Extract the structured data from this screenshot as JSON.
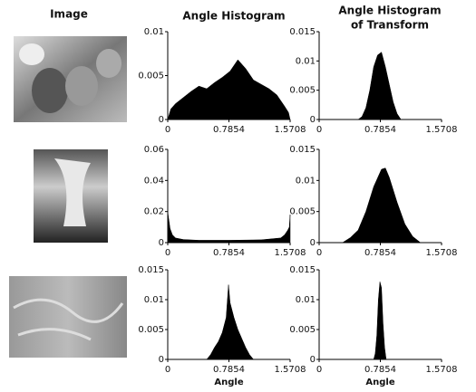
{
  "headers": {
    "image": "Image",
    "angle_histogram": "Angle Histogram",
    "transform": [
      "Angle Histogram",
      "of Transform"
    ]
  },
  "chart_data": [
    {
      "type": "area",
      "color": "#000000",
      "xlim": [
        0,
        1.5708
      ],
      "xticks": [
        0,
        0.7854,
        1.5708
      ],
      "ylim": [
        0,
        0.01
      ],
      "yticks": [
        0,
        0.005,
        0.01
      ],
      "x": [
        0,
        0.04,
        0.1,
        0.2,
        0.3,
        0.4,
        0.5,
        0.6,
        0.7,
        0.8,
        0.9,
        1.0,
        1.1,
        1.2,
        1.3,
        1.4,
        1.5,
        1.55,
        1.5708
      ],
      "values": [
        0,
        0.0012,
        0.0018,
        0.0025,
        0.0032,
        0.0038,
        0.0035,
        0.0042,
        0.0048,
        0.0055,
        0.0068,
        0.0058,
        0.0045,
        0.004,
        0.0035,
        0.0028,
        0.0015,
        0.0008,
        0
      ]
    },
    {
      "type": "area",
      "color": "#000000",
      "xlim": [
        0,
        1.5708
      ],
      "xticks": [
        0,
        0.7854,
        1.5708
      ],
      "ylim": [
        0,
        0.015
      ],
      "yticks": [
        0,
        0.005,
        0.01,
        0.015
      ],
      "x": [
        0,
        0.5,
        0.55,
        0.6,
        0.65,
        0.7,
        0.75,
        0.8,
        0.85,
        0.9,
        0.95,
        1.0,
        1.05,
        1.5708
      ],
      "values": [
        0,
        0,
        0.0005,
        0.002,
        0.005,
        0.009,
        0.011,
        0.0115,
        0.009,
        0.006,
        0.003,
        0.001,
        0,
        0
      ]
    },
    {
      "type": "area",
      "color": "#000000",
      "xlim": [
        0,
        1.5708
      ],
      "xticks": [
        0,
        0.7854,
        1.5708
      ],
      "ylim": [
        0,
        0.06
      ],
      "yticks": [
        0,
        0.02,
        0.04,
        0.06
      ],
      "x": [
        0,
        0.01,
        0.03,
        0.06,
        0.1,
        0.2,
        0.4,
        0.7854,
        1.2,
        1.45,
        1.5,
        1.54,
        1.56,
        1.5708
      ],
      "values": [
        0.02,
        0.016,
        0.009,
        0.005,
        0.003,
        0.002,
        0.0015,
        0.0015,
        0.0018,
        0.003,
        0.005,
        0.008,
        0.01,
        0.018
      ]
    },
    {
      "type": "area",
      "color": "#000000",
      "xlim": [
        0,
        1.5708
      ],
      "xticks": [
        0,
        0.7854,
        1.5708
      ],
      "ylim": [
        0,
        0.015
      ],
      "yticks": [
        0,
        0.005,
        0.01,
        0.015
      ],
      "x": [
        0,
        0.3,
        0.4,
        0.5,
        0.6,
        0.7,
        0.8,
        0.85,
        0.9,
        1.0,
        1.1,
        1.2,
        1.3,
        1.5708
      ],
      "values": [
        0,
        0,
        0.0008,
        0.002,
        0.005,
        0.009,
        0.0118,
        0.012,
        0.0105,
        0.0065,
        0.003,
        0.001,
        0,
        0
      ]
    },
    {
      "type": "area",
      "color": "#000000",
      "xlim": [
        0,
        1.5708
      ],
      "xticks": [
        0,
        0.7854,
        1.5708
      ],
      "ylim": [
        0,
        0.015
      ],
      "yticks": [
        0,
        0.005,
        0.01,
        0.015
      ],
      "xlabel": "Angle",
      "x": [
        0,
        0.5,
        0.55,
        0.6,
        0.65,
        0.7,
        0.75,
        0.78,
        0.8,
        0.85,
        0.9,
        0.95,
        1.0,
        1.05,
        1.1,
        1.5708
      ],
      "values": [
        0,
        0,
        0.0008,
        0.002,
        0.003,
        0.0045,
        0.007,
        0.0125,
        0.0095,
        0.007,
        0.005,
        0.0035,
        0.002,
        0.0008,
        0,
        0
      ]
    },
    {
      "type": "area",
      "color": "#000000",
      "xlim": [
        0,
        1.5708
      ],
      "xticks": [
        0,
        0.7854,
        1.5708
      ],
      "ylim": [
        0,
        0.015
      ],
      "yticks": [
        0,
        0.005,
        0.01,
        0.015
      ],
      "xlabel": "Angle",
      "x": [
        0,
        0.7,
        0.72,
        0.74,
        0.76,
        0.78,
        0.8,
        0.82,
        0.84,
        0.86,
        1.5708
      ],
      "values": [
        0,
        0,
        0.001,
        0.004,
        0.01,
        0.013,
        0.012,
        0.006,
        0.002,
        0,
        0
      ]
    }
  ]
}
